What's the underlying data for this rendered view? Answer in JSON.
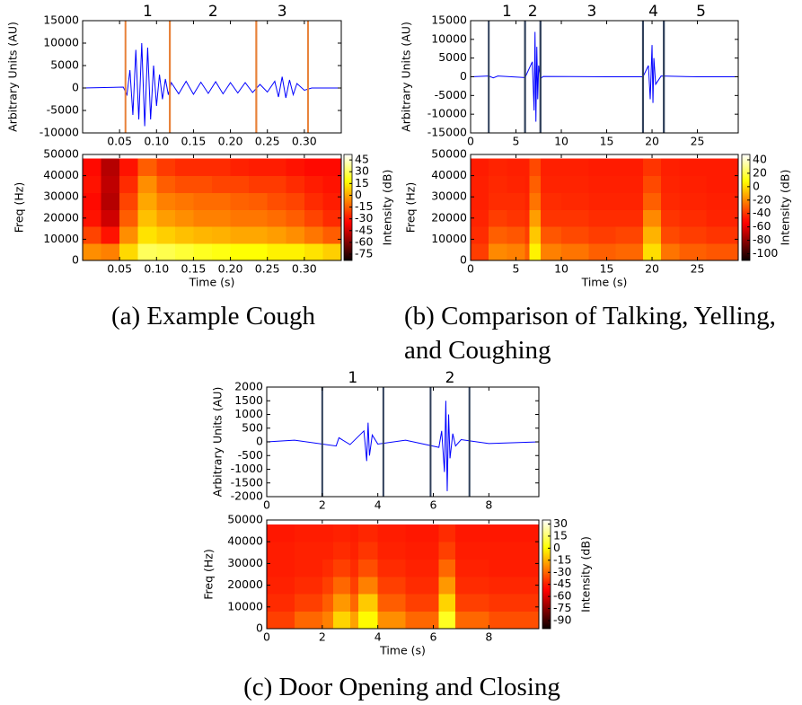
{
  "chart_data": [
    {
      "type": "line",
      "ylabel": "Arbitrary Units (AU)",
      "x": [
        0,
        0.055,
        0.06,
        0.064,
        0.068,
        0.072,
        0.076,
        0.08,
        0.084,
        0.088,
        0.092,
        0.096,
        0.1,
        0.104,
        0.108,
        0.112,
        0.116,
        0.12,
        0.13,
        0.14,
        0.15,
        0.16,
        0.17,
        0.18,
        0.19,
        0.2,
        0.21,
        0.22,
        0.23,
        0.24,
        0.25,
        0.26,
        0.265,
        0.27,
        0.275,
        0.28,
        0.285,
        0.29,
        0.3,
        0.31,
        0.35
      ],
      "values": [
        0,
        200,
        -1500,
        4000,
        -6000,
        8500,
        -7000,
        10000,
        -8500,
        9000,
        -7000,
        5000,
        -4000,
        3000,
        -2500,
        2000,
        -1500,
        1200,
        -1300,
        1500,
        -1400,
        1300,
        -1200,
        1400,
        -1300,
        1200,
        -1100,
        1200,
        -1000,
        800,
        -900,
        1500,
        -2000,
        2500,
        -2200,
        1800,
        -1500,
        1000,
        -500,
        0,
        0
      ],
      "color": "#0000ff",
      "xlim": [
        0,
        0.35
      ],
      "ylim": [
        -10000,
        15000
      ],
      "xticks": [
        0.05,
        {
          "value": 0.1,
          "label": "0.10"
        },
        0.15,
        {
          "value": 0.2,
          "label": "0.20"
        },
        0.25,
        {
          "value": 0.3,
          "label": "0.30"
        }
      ],
      "yticks": [
        -10000,
        -5000,
        0,
        5000,
        10000,
        15000
      ],
      "marker_color": "#e8823a",
      "segments": [
        {
          "label": "1",
          "start": 0.058,
          "end": 0.118
        },
        {
          "label": "2",
          "start": 0.118,
          "end": 0.235
        },
        {
          "label": "3",
          "start": 0.235,
          "end": 0.305
        }
      ]
    },
    {
      "type": "heatmap",
      "ylabel": "Freq (Hz)",
      "xlabel": "Time (s)",
      "colorbar_label": "Intensity (dB)",
      "colormap": "hot",
      "x_edges": [
        0,
        0.025,
        0.05,
        0.075,
        0.1,
        0.125,
        0.15,
        0.175,
        0.2,
        0.225,
        0.25,
        0.275,
        0.3,
        0.325,
        0.35
      ],
      "y_edges": [
        0,
        8000,
        16000,
        24000,
        32000,
        40000,
        48000
      ],
      "z": [
        [
          -5,
          -8,
          10,
          30,
          28,
          25,
          22,
          20,
          18,
          18,
          15,
          15,
          12,
          8
        ],
        [
          -20,
          -30,
          -5,
          12,
          8,
          5,
          3,
          2,
          0,
          0,
          -2,
          -5,
          -10,
          -15
        ],
        [
          -30,
          -45,
          -15,
          5,
          -2,
          -5,
          -8,
          -8,
          -10,
          -10,
          -12,
          -15,
          -20,
          -25
        ],
        [
          -32,
          -50,
          -20,
          0,
          -8,
          -10,
          -12,
          -12,
          -14,
          -15,
          -18,
          -20,
          -25,
          -28
        ],
        [
          -30,
          -48,
          -25,
          -5,
          -15,
          -18,
          -18,
          -20,
          -20,
          -22,
          -22,
          -25,
          -28,
          -30
        ],
        [
          -32,
          -50,
          -30,
          -15,
          -22,
          -25,
          -25,
          -25,
          -27,
          -28,
          -28,
          -30,
          -32,
          -32
        ]
      ],
      "xlim": [
        0,
        0.35
      ],
      "ylim": [
        0,
        50000
      ],
      "zlim": [
        -83,
        52
      ],
      "xticks": [
        0.05,
        {
          "value": 0.1,
          "label": "0.10"
        },
        0.15,
        {
          "value": 0.2,
          "label": "0.20"
        },
        0.25,
        {
          "value": 0.3,
          "label": "0.30"
        }
      ],
      "yticks": [
        0,
        10000,
        20000,
        30000,
        40000,
        50000
      ],
      "zticks": [
        45,
        30,
        15,
        0,
        -15,
        -30,
        -45,
        -60,
        -75
      ]
    },
    {
      "type": "line",
      "ylabel": "Arbitrary Units (AU)",
      "x": [
        0,
        2,
        2.5,
        3,
        6,
        6.8,
        7,
        7.1,
        7.2,
        7.3,
        7.4,
        7.5,
        7.7,
        8,
        15,
        19,
        19.6,
        19.8,
        20,
        20.1,
        20.2,
        20.4,
        21,
        25,
        29.5
      ],
      "values": [
        0,
        200,
        -300,
        200,
        -200,
        4000,
        -9000,
        12000,
        -12000,
        8000,
        -6000,
        3000,
        -500,
        100,
        0,
        0,
        3000,
        -6000,
        8500,
        -7000,
        5000,
        -2000,
        200,
        0,
        0
      ],
      "color": "#0000ff",
      "xlim": [
        0,
        29.5
      ],
      "ylim": [
        -15000,
        15000
      ],
      "xticks": [
        0,
        5,
        10,
        15,
        20,
        25
      ],
      "yticks": [
        -15000,
        -10000,
        -5000,
        0,
        5000,
        10000,
        15000
      ],
      "marker_color": "#2f3f5a",
      "segments": [
        {
          "label": "1",
          "start": 2,
          "end": 6
        },
        {
          "label": "2",
          "start": 6,
          "end": 7.7
        },
        {
          "label": "3",
          "start": 7.7,
          "end": 19
        },
        {
          "label": "4",
          "start": 19,
          "end": 21.3
        },
        {
          "label": "5",
          "start": 21.3,
          "end": null
        }
      ]
    },
    {
      "type": "heatmap",
      "ylabel": "Freq (Hz)",
      "xlabel": "Time (s)",
      "colorbar_label": "Intensity (dB)",
      "colormap": "hot",
      "x_edges": [
        0,
        2,
        4,
        6,
        6.5,
        7.7,
        10,
        13,
        16,
        19,
        21,
        23,
        26,
        29.5
      ],
      "y_edges": [
        0,
        8000,
        16000,
        24000,
        32000,
        40000,
        48000
      ],
      "z": [
        [
          -38,
          -20,
          -22,
          -30,
          5,
          -22,
          -25,
          -30,
          -28,
          0,
          -25,
          -30,
          -32
        ],
        [
          -42,
          -30,
          -32,
          -38,
          -5,
          -32,
          -35,
          -38,
          -36,
          -10,
          -35,
          -38,
          -40
        ],
        [
          -44,
          -38,
          -40,
          -42,
          -15,
          -40,
          -40,
          -42,
          -42,
          -20,
          -40,
          -42,
          -44
        ],
        [
          -45,
          -42,
          -42,
          -44,
          -25,
          -42,
          -43,
          -44,
          -44,
          -30,
          -43,
          -44,
          -45
        ],
        [
          -45,
          -43,
          -44,
          -45,
          -30,
          -44,
          -44,
          -45,
          -45,
          -35,
          -44,
          -45,
          -46
        ],
        [
          -46,
          -44,
          -45,
          -45,
          -35,
          -45,
          -45,
          -46,
          -46,
          -40,
          -45,
          -46,
          -46
        ]
      ],
      "xlim": [
        0,
        29.5
      ],
      "ylim": [
        0,
        50000
      ],
      "zlim": [
        -110,
        48
      ],
      "xticks": [
        0,
        5,
        10,
        15,
        20,
        25
      ],
      "yticks": [
        0,
        10000,
        20000,
        30000,
        40000,
        50000
      ],
      "zticks": [
        40,
        20,
        0,
        -20,
        -40,
        -60,
        -80,
        -100
      ]
    },
    {
      "type": "line",
      "ylabel": "Arbitrary Units (AU)",
      "x": [
        0,
        1,
        2.5,
        2.6,
        3,
        3.5,
        3.6,
        3.65,
        3.7,
        3.8,
        4,
        5,
        6.2,
        6.3,
        6.4,
        6.45,
        6.5,
        6.55,
        6.6,
        6.7,
        6.8,
        7,
        8,
        9.8
      ],
      "values": [
        0,
        60,
        -150,
        150,
        -100,
        400,
        -700,
        700,
        -500,
        250,
        -80,
        60,
        -200,
        400,
        -1100,
        1500,
        -1800,
        1000,
        -600,
        300,
        -150,
        80,
        -60,
        0
      ],
      "color": "#0000ff",
      "xlim": [
        0,
        9.8
      ],
      "ylim": [
        -2000,
        2000
      ],
      "xticks": [
        0,
        2,
        4,
        6,
        8
      ],
      "yticks": [
        -2000,
        -1500,
        -1000,
        -500,
        0,
        500,
        1000,
        1500,
        2000
      ],
      "marker_color": "#2f3f5a",
      "segments": [
        {
          "label": "1",
          "start": 2,
          "end": 4.2
        },
        {
          "label": "2",
          "start": 5.9,
          "end": 7.3
        }
      ]
    },
    {
      "type": "heatmap",
      "ylabel": "Freq (Hz)",
      "xlabel": "Time (s)",
      "colorbar_label": "Intensity (dB)",
      "colormap": "hot",
      "x_edges": [
        0,
        1,
        2,
        2.4,
        3,
        3.3,
        4,
        5,
        6.2,
        6.8,
        8,
        9.8
      ],
      "y_edges": [
        0,
        8000,
        16000,
        24000,
        32000,
        40000,
        48000
      ],
      "z": [
        [
          -38,
          -30,
          -25,
          -8,
          -18,
          0,
          -22,
          -30,
          5,
          -30,
          -35
        ],
        [
          -42,
          -38,
          -32,
          -20,
          -30,
          -10,
          -32,
          -38,
          -8,
          -38,
          -40
        ],
        [
          -44,
          -42,
          -38,
          -30,
          -38,
          -25,
          -38,
          -42,
          -20,
          -42,
          -43
        ],
        [
          -45,
          -44,
          -42,
          -38,
          -42,
          -35,
          -42,
          -44,
          -30,
          -44,
          -45
        ],
        [
          -45,
          -44,
          -44,
          -42,
          -44,
          -40,
          -44,
          -45,
          -38,
          -45,
          -45
        ],
        [
          -46,
          -45,
          -45,
          -44,
          -45,
          -43,
          -45,
          -46,
          -42,
          -46,
          -46
        ]
      ],
      "xlim": [
        0,
        9.8
      ],
      "ylim": [
        0,
        50000
      ],
      "zlim": [
        -100,
        35
      ],
      "xticks": [
        0,
        2,
        4,
        6,
        8
      ],
      "yticks": [
        0,
        10000,
        20000,
        30000,
        40000,
        50000
      ],
      "zticks": [
        30,
        15,
        0,
        -15,
        -30,
        -45,
        -60,
        -75,
        -90
      ]
    }
  ],
  "captions": [
    "(a) Example Cough",
    "(b) Comparison of Talking, Yelling, and Coughing",
    "(c) Door Opening and Closing"
  ]
}
